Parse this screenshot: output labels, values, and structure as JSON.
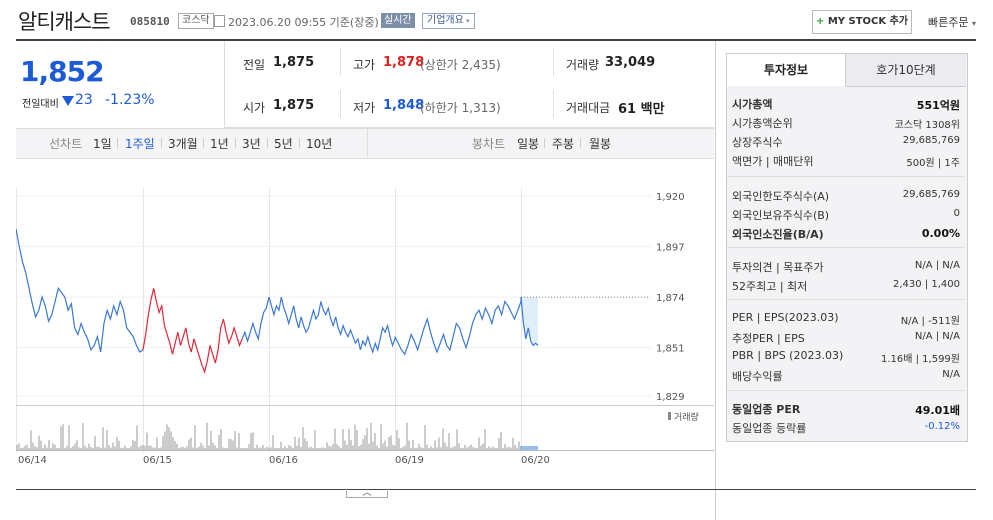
{
  "header": {
    "company_name": "알티캐스트",
    "code": "085810",
    "market": "코스닥",
    "timestamp": "2023.06.20 09:55 기준(장중)",
    "realtime": "실시간",
    "company_info": "기업개요",
    "my_stock": "MY STOCK 추가",
    "quick_order": "빠른주문"
  },
  "price": {
    "current": "1,852",
    "change_label": "전일대비",
    "change_value": "23",
    "change_rate": "-1.23%"
  },
  "summary": {
    "prev_label": "전일",
    "prev_value": "1,875",
    "high_label": "고가",
    "high_value": "1,878",
    "upper_limit": "(상한가 2,435)",
    "volume_label": "거래량",
    "volume_value": "33,049",
    "open_label": "시가",
    "open_value": "1,875",
    "low_label": "저가",
    "low_value": "1,848",
    "lower_limit": "(하한가 1,313)",
    "amount_label": "거래대금",
    "amount_value": "61 백만"
  },
  "period_bar": {
    "line_label": "선차트",
    "periods": [
      "1일",
      "1주일",
      "3개월",
      "1년",
      "3년",
      "5년",
      "10년"
    ],
    "selected": "1주일",
    "candle_label": "봉차트",
    "candles": [
      "일봉",
      "주봉",
      "월봉"
    ]
  },
  "chart_data": {
    "type": "line",
    "x_labels": [
      "06/14",
      "06/15",
      "06/16",
      "06/19",
      "06/20"
    ],
    "y_ticks": [
      "1,920",
      "1,897",
      "1,874",
      "1,851",
      "1,829"
    ],
    "ylim": [
      1829,
      1920
    ],
    "volume_label": "거래량",
    "colors": {
      "normal": "#3a78d8",
      "highlight": "#e0283a",
      "area": "#cfe1f7"
    },
    "series": [
      {
        "segment": "06/14",
        "values": [
          1905,
          1897,
          1890,
          1885,
          1878,
          1871,
          1865,
          1868,
          1874,
          1870,
          1863,
          1866,
          1872,
          1878,
          1876,
          1874,
          1868,
          1871,
          1860,
          1857,
          1862,
          1858,
          1855,
          1850,
          1852,
          1856,
          1849,
          1862,
          1868,
          1864,
          1870,
          1866,
          1872,
          1868,
          1860,
          1858,
          1856,
          1852,
          1849,
          1850
        ]
      },
      {
        "segment": "06/15-red",
        "values": [
          1850,
          1857,
          1866,
          1873,
          1878,
          1872,
          1867,
          1870,
          1861,
          1857,
          1853,
          1848,
          1853,
          1858,
          1852,
          1856,
          1860,
          1853,
          1849,
          1855,
          1851,
          1847,
          1843,
          1840,
          1845,
          1852,
          1848,
          1844,
          1850,
          1860,
          1864,
          1858,
          1853,
          1856,
          1860,
          1856,
          1852,
          1855,
          1858,
          1854,
          1858,
          1862,
          1858,
          1855,
          1862,
          1867,
          1869,
          1874
        ]
      },
      {
        "segment": "06/16",
        "values": [
          1874,
          1870,
          1866,
          1870,
          1868,
          1874,
          1869,
          1866,
          1862,
          1866,
          1870,
          1864,
          1860,
          1865,
          1861,
          1858,
          1860,
          1864,
          1868,
          1864,
          1866,
          1872,
          1868,
          1866,
          1869,
          1864,
          1861,
          1865,
          1860,
          1857,
          1861,
          1858,
          1856,
          1859,
          1856,
          1853,
          1855,
          1850,
          1854,
          1852,
          1856,
          1852,
          1849,
          1853,
          1850,
          1855,
          1860,
          1858,
          1861,
          1856,
          1852,
          1855
        ]
      },
      {
        "segment": "06/19",
        "values": [
          1856,
          1853,
          1850,
          1848,
          1852,
          1857,
          1854,
          1850,
          1855,
          1860,
          1864,
          1858,
          1853,
          1849,
          1853,
          1857,
          1852,
          1850,
          1856,
          1862,
          1860,
          1855,
          1851,
          1856,
          1862,
          1866,
          1868,
          1864,
          1869,
          1866,
          1862,
          1868,
          1870,
          1866,
          1872,
          1870,
          1867,
          1864,
          1868,
          1872
        ]
      },
      {
        "segment": "06/20",
        "values": [
          1874,
          1862,
          1855,
          1860,
          1854,
          1852,
          1853,
          1852
        ]
      }
    ]
  },
  "right_panel": {
    "tab_invest": "투자정보",
    "tab_quote": "호가10단계",
    "rows1": [
      {
        "label": "시가총액",
        "value": "551억원"
      },
      {
        "label": "시가총액순위",
        "value": "코스닥 1308위"
      },
      {
        "label": "상장주식수",
        "value": "29,685,769"
      },
      {
        "label": "액면가 | 매매단위",
        "value": "500원 | 1주"
      }
    ],
    "rows2": [
      {
        "label": "외국인한도주식수(A)",
        "value": "29,685,769"
      },
      {
        "label": "외국인보유주식수(B)",
        "value": "0"
      },
      {
        "label": "외국인소진율(B/A)",
        "value": "0.00%"
      }
    ],
    "rows3": [
      {
        "label": "투자의견 | 목표주가",
        "value": "N/A | N/A"
      },
      {
        "label": "52주최고 | 최저",
        "value": "2,430 | 1,400"
      }
    ],
    "rows4": [
      {
        "label": "PER | EPS(2023.03)",
        "value": "N/A | -511원"
      },
      {
        "label": "추정PER | EPS",
        "value": "N/A | N/A"
      },
      {
        "label": "PBR | BPS (2023.03)",
        "value": "1.16배 | 1,599원"
      },
      {
        "label": "배당수익률",
        "value": "N/A"
      }
    ],
    "rows5": [
      {
        "label": "동일업종 PER",
        "value": "49.01배"
      },
      {
        "label": "동일업종 등락률",
        "value": "-0.12%"
      }
    ]
  }
}
